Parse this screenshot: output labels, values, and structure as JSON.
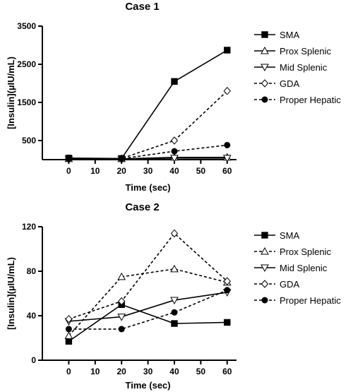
{
  "chart_data": [
    {
      "type": "line",
      "title": "Case 1",
      "xlabel": "Time (sec)",
      "ylabel": "[Insulin](µIU/mL)",
      "x": [
        0,
        20,
        40,
        60
      ],
      "xticks": [
        0,
        10,
        20,
        30,
        40,
        50,
        60
      ],
      "xlim": [
        -10,
        63
      ],
      "ylim": [
        0,
        3500
      ],
      "yticks": [
        500,
        1500,
        2500,
        3500
      ],
      "legend_position": "right",
      "series": [
        {
          "name": "SMA",
          "values": [
            40,
            30,
            2050,
            2870
          ],
          "marker": "square",
          "dash": "solid"
        },
        {
          "name": "Prox Splenic",
          "values": [
            20,
            20,
            60,
            60
          ],
          "marker": "triangle-up",
          "dash": "solid"
        },
        {
          "name": "Mid Splenic",
          "values": [
            15,
            15,
            40,
            40
          ],
          "marker": "triangle-down",
          "dash": "solid"
        },
        {
          "name": "GDA",
          "values": [
            30,
            30,
            500,
            1800
          ],
          "marker": "diamond",
          "dash": "dashed"
        },
        {
          "name": "Proper Hepatic",
          "values": [
            25,
            25,
            220,
            380
          ],
          "marker": "circle",
          "dash": "dashed"
        }
      ]
    },
    {
      "type": "line",
      "title": "Case 2",
      "xlabel": "Time (sec)",
      "ylabel": "[Insulin](µIU/mL)",
      "x": [
        0,
        20,
        40,
        60
      ],
      "xticks": [
        0,
        10,
        20,
        30,
        40,
        50,
        60
      ],
      "xlim": [
        -10,
        63
      ],
      "ylim": [
        0,
        120
      ],
      "yticks": [
        0,
        40,
        80,
        120
      ],
      "legend_position": "right",
      "series": [
        {
          "name": "SMA",
          "values": [
            17,
            50,
            33,
            34
          ],
          "marker": "square",
          "dash": "solid"
        },
        {
          "name": "Prox Splenic",
          "values": [
            22,
            75,
            82,
            70
          ],
          "marker": "triangle-up",
          "dash": "dashed"
        },
        {
          "name": "Mid Splenic",
          "values": [
            35,
            39,
            54,
            61
          ],
          "marker": "triangle-down",
          "dash": "solid"
        },
        {
          "name": "GDA",
          "values": [
            37,
            53,
            114,
            71
          ],
          "marker": "diamond",
          "dash": "dashed"
        },
        {
          "name": "Proper Hepatic",
          "values": [
            28,
            28,
            43,
            63
          ],
          "marker": "circle",
          "dash": "dashed"
        }
      ]
    }
  ]
}
